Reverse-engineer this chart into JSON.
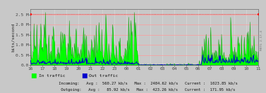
{
  "ylabel": "bits/second",
  "bg_color": "#c8c8c8",
  "plot_bg_color": "#c8c8c8",
  "grid_h_color": "#ff9999",
  "grid_v_color": "#dddddd",
  "x_ticks": [
    "16",
    "17",
    "18",
    "19",
    "20",
    "21",
    "22",
    "23",
    "00",
    "01",
    "02",
    "03",
    "04",
    "05",
    "06",
    "07",
    "08",
    "09",
    "10",
    "11"
  ],
  "ylim": [
    0,
    2750000.0
  ],
  "yticks": [
    0.0,
    500000.0,
    1000000.0,
    1500000.0,
    2000000.0,
    2500000.0
  ],
  "ytick_labels": [
    "0.0",
    "0.5 M",
    "1.0 M",
    "1.5 M",
    "2.0 M",
    "2.5 M"
  ],
  "in_color": "#00ff00",
  "out_color": "#0000cc",
  "top_line_color": "#ff0000",
  "hline_color": "#ff9999",
  "hline_positions": [
    500000.0,
    1000000.0,
    1500000.0,
    2000000.0,
    2500000.0
  ],
  "legend_in": "In traffic",
  "legend_out": "Out traffic",
  "stats_line1": "             Incoming:   Avg :  560.27 kb/s   Max :  2484.62 kb/s   Current :  1023.85 kb/s",
  "stats_line2": "             Outgoing:   Avg :   85.92 kb/s   Max :  423.26 kb/s   Current :  171.95 kb/s",
  "num_points": 400,
  "right_text": "MRTG 2.17.4"
}
